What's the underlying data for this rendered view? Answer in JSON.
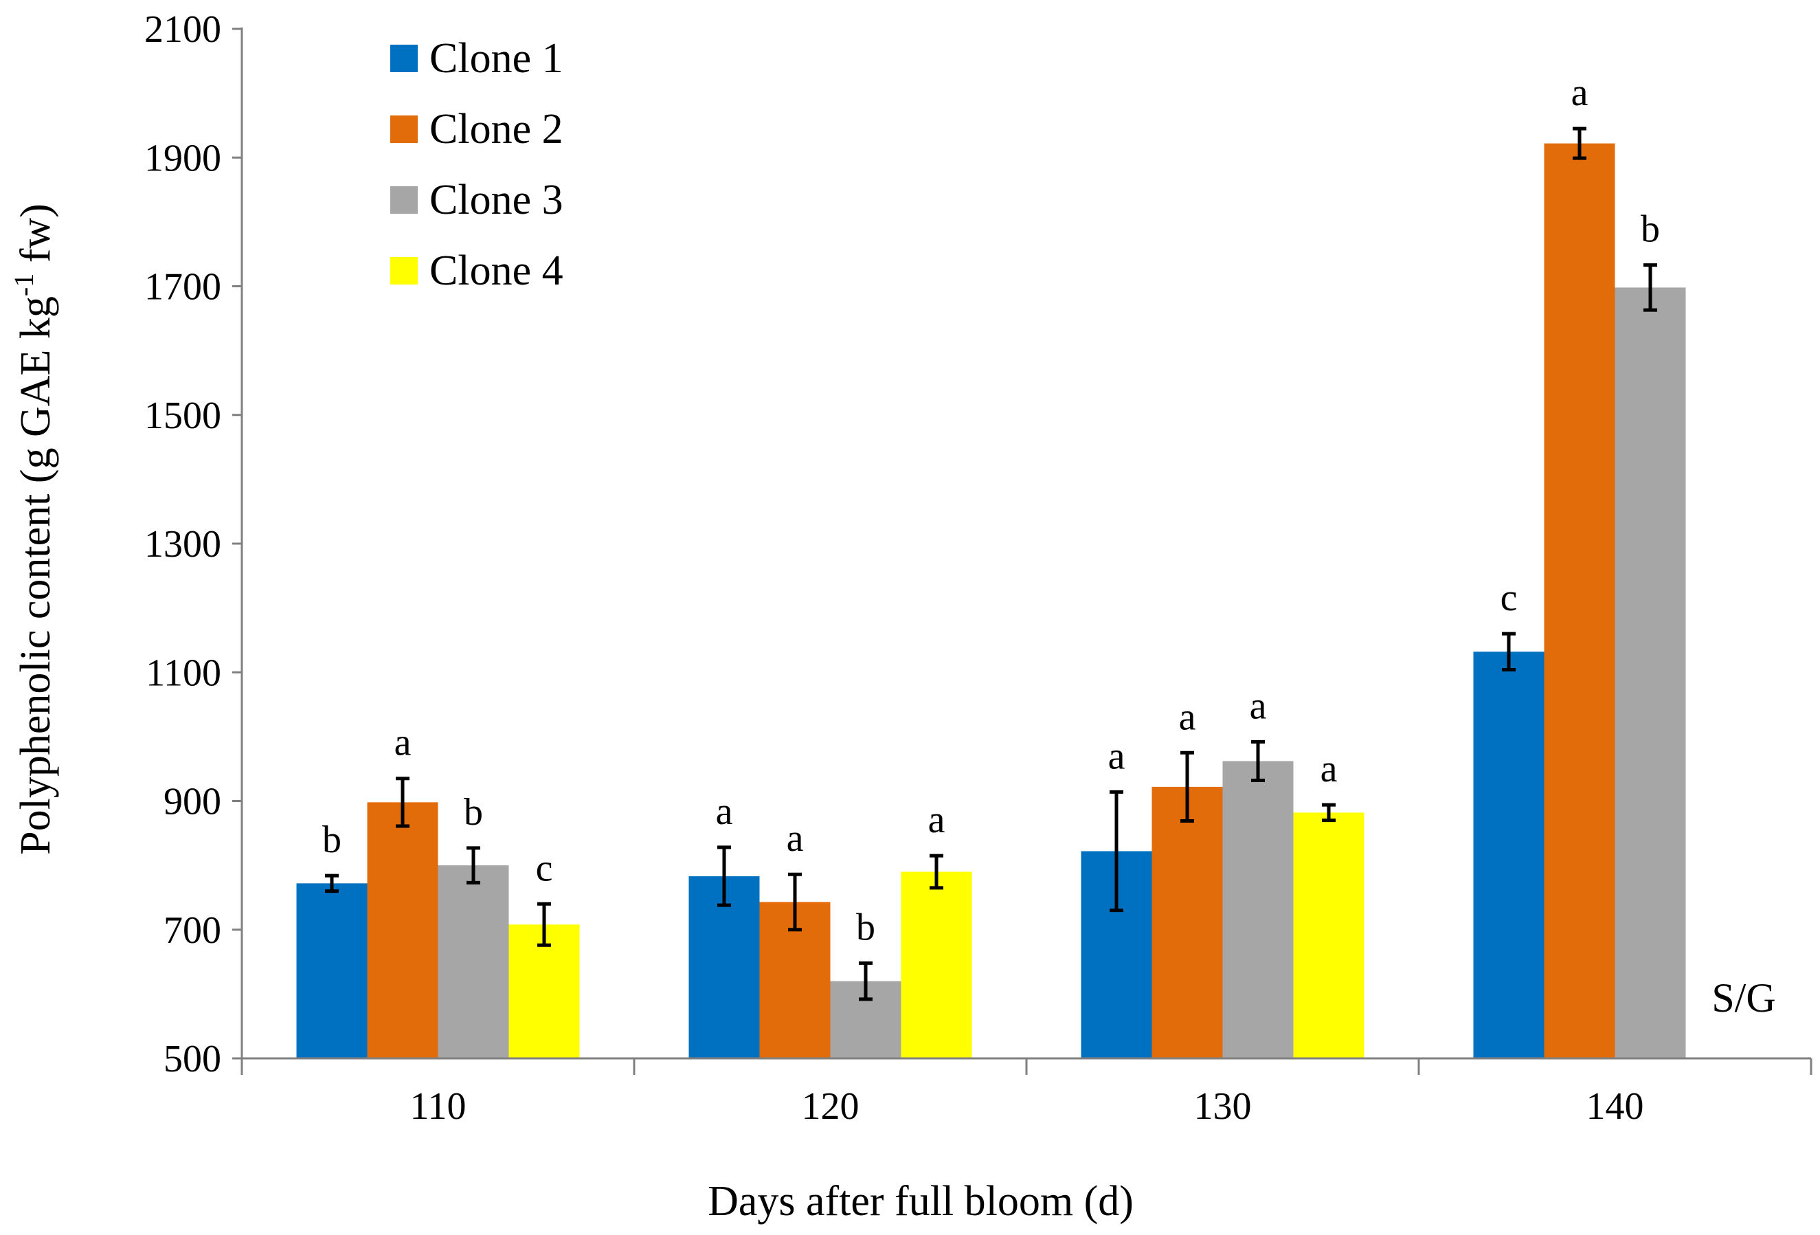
{
  "chart_data": {
    "type": "bar",
    "title": "",
    "xlabel": "Days after full bloom (d)",
    "ylabel": "Polyphenolic content (g GAE kg",
    "ylabel_superscript": "-1",
    "ylabel_suffix": " fw)",
    "ylim": [
      500,
      2100
    ],
    "yticks": [
      500,
      700,
      900,
      1100,
      1300,
      1500,
      1700,
      1900,
      2100
    ],
    "grid": false,
    "legend_position": "top-left",
    "categories": [
      "110",
      "120",
      "130",
      "140"
    ],
    "series": [
      {
        "name": "Clone 1",
        "color": "#0070C0",
        "values": [
          772,
          783,
          822,
          1132
        ],
        "errors": [
          12,
          45,
          92,
          28
        ],
        "labels": [
          "b",
          "a",
          "a",
          "c"
        ]
      },
      {
        "name": "Clone 2",
        "color": "#E36C0A",
        "values": [
          898,
          743,
          922,
          1922
        ],
        "errors": [
          37,
          43,
          53,
          23
        ],
        "labels": [
          "a",
          "a",
          "a",
          "a"
        ]
      },
      {
        "name": "Clone 3",
        "color": "#A6A6A6",
        "values": [
          800,
          620,
          962,
          1698
        ],
        "errors": [
          27,
          28,
          30,
          35
        ],
        "labels": [
          "b",
          "b",
          "a",
          "b"
        ]
      },
      {
        "name": "Clone 4",
        "color": "#FFFF00",
        "values": [
          708,
          790,
          882,
          null
        ],
        "errors": [
          32,
          25,
          12,
          null
        ],
        "labels": [
          "c",
          "a",
          "a",
          null
        ]
      }
    ],
    "annotation": "S/G"
  }
}
